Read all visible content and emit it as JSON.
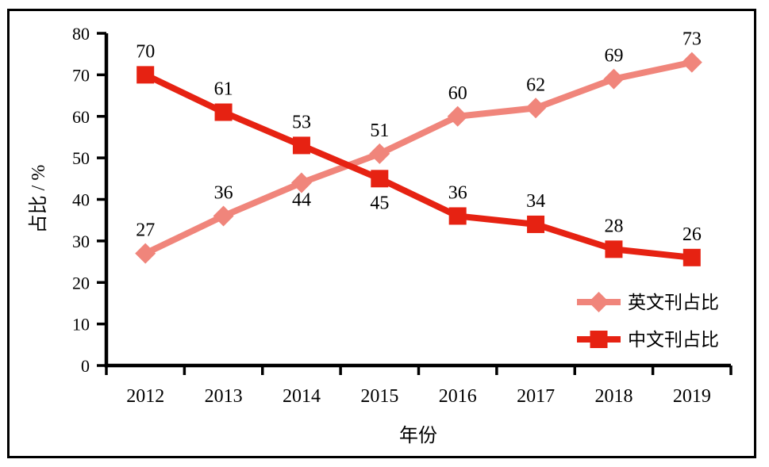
{
  "figure": {
    "background": "#ffffff",
    "border_color": "#000000",
    "axis_color": "#000000",
    "text_color": "#000000"
  },
  "chart_data": {
    "type": "line",
    "title": "",
    "categories": [
      "2012",
      "2013",
      "2014",
      "2015",
      "2016",
      "2017",
      "2018",
      "2019"
    ],
    "series": [
      {
        "id": "english",
        "name": "英文刊占比",
        "color": "#F0857B",
        "marker": "diamond",
        "values": [
          27,
          36,
          44,
          51,
          60,
          62,
          69,
          73
        ],
        "label_below_indices": [
          2
        ]
      },
      {
        "id": "chinese",
        "name": "中文刊占比",
        "color": "#E62212",
        "marker": "square",
        "values": [
          70,
          61,
          53,
          45,
          36,
          34,
          28,
          26
        ],
        "label_below_indices": [
          3
        ]
      }
    ],
    "xlabel": "年份",
    "ylabel": "占比 / %",
    "ylim": [
      0,
      80
    ],
    "yticks": [
      0,
      10,
      20,
      30,
      40,
      50,
      60,
      70,
      80
    ],
    "grid": false,
    "data_labels": true,
    "legend_position": "inside-right"
  }
}
